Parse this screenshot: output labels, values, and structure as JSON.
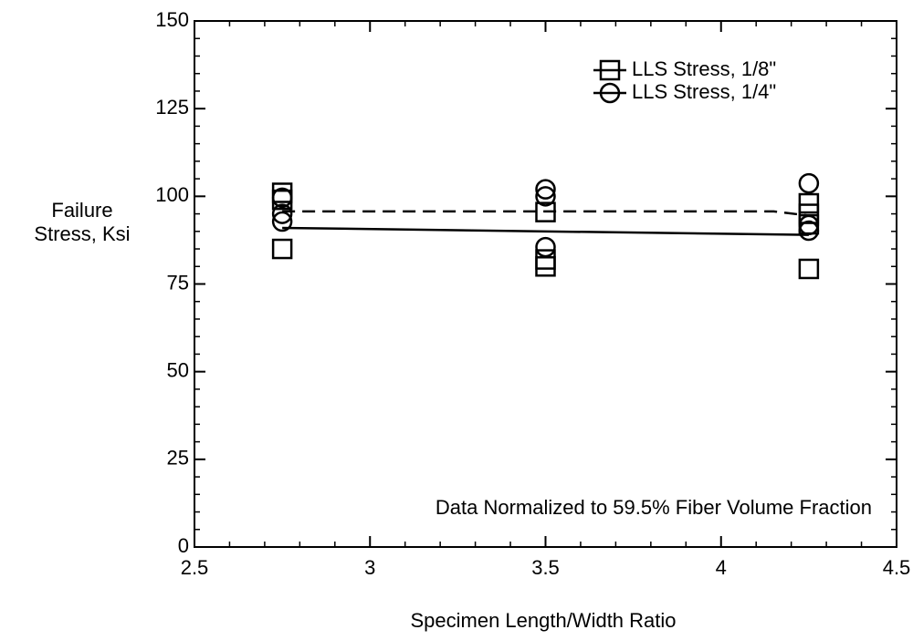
{
  "chart_data": {
    "type": "scatter",
    "xlabel": "Specimen Length/Width Ratio",
    "ylabel": [
      "Failure",
      "Stress, Ksi"
    ],
    "annotation": "Data Normalized to 59.5% Fiber Volume Fraction",
    "xlim": [
      2.5,
      4.5
    ],
    "xticks": [
      2.5,
      3,
      3.5,
      4,
      4.5
    ],
    "ylim": [
      0,
      150
    ],
    "yticks": [
      0,
      25,
      50,
      75,
      100,
      125,
      150
    ],
    "xminor": 0.1,
    "yminor": 5,
    "legend": "top-right",
    "series": [
      {
        "name": "LLS Stress, 1/8\"",
        "marker": "square",
        "color": "#000000",
        "x": [
          2.75,
          2.75,
          2.75,
          3.5,
          3.5,
          3.5,
          4.25,
          4.25,
          4.25,
          4.25
        ],
        "values": [
          101,
          99,
          85,
          95.5,
          82,
          80,
          98,
          95,
          92,
          79.3
        ]
      },
      {
        "name": "LLS Stress, 1/4\"",
        "marker": "circle",
        "color": "#000000",
        "x": [
          2.75,
          2.75,
          2.75,
          3.5,
          3.5,
          3.5,
          4.25,
          4.25,
          4.25
        ],
        "values": [
          99.6,
          95,
          92.8,
          102,
          100,
          85.5,
          103.7,
          91.8,
          90.2
        ]
      }
    ],
    "lines": [
      {
        "style": "solid",
        "x": [
          2.75,
          4.25
        ],
        "values": [
          91,
          89
        ]
      },
      {
        "style": "dashed",
        "x": [
          2.75,
          4.15,
          4.25
        ],
        "values": [
          95.7,
          95.7,
          94.5
        ]
      }
    ]
  }
}
